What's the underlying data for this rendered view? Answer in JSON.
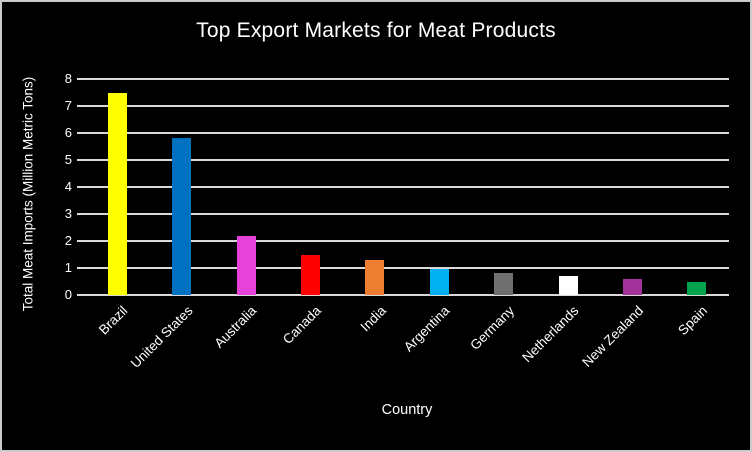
{
  "figure": {
    "background": "#000000",
    "border_color": "#cbcbcb",
    "text_color": "#ffffff"
  },
  "chart_data": {
    "type": "bar",
    "title": "Top Export Markets for Meat Products",
    "xlabel": "Country",
    "ylabel": "Total Meat Imports (Million Metric Tons)",
    "categories": [
      "Brazil",
      "United States",
      "Australia",
      "Canada",
      "India",
      "Argentina",
      "Germany",
      "Netherlands",
      "New Zealand",
      "Spain"
    ],
    "values": [
      7.5,
      5.8,
      2.2,
      1.5,
      1.3,
      0.95,
      0.8,
      0.7,
      0.6,
      0.5
    ],
    "bar_colors": [
      "#ffff00",
      "#0070c0",
      "#e543da",
      "#ff0000",
      "#ed7d31",
      "#00b0f0",
      "#707070",
      "#ffffff",
      "#a2339b",
      "#00a44e"
    ],
    "ylim": [
      0,
      8
    ],
    "yticks": [
      0,
      1,
      2,
      3,
      4,
      5,
      6,
      7,
      8
    ],
    "grid": "horizontal",
    "gridline_color": "#d9d9d9",
    "legend": "none"
  }
}
